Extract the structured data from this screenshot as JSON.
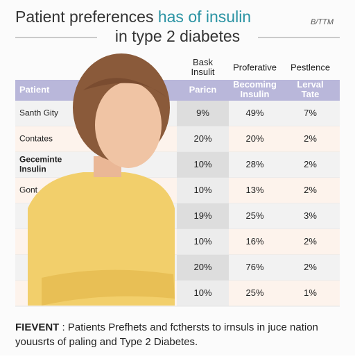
{
  "header": {
    "title_start": "Patient preferences",
    "title_highlight": "has of insulin",
    "title_line2": "in type 2 diabetes",
    "corner": "B/TTM"
  },
  "table": {
    "top_headers": [
      null,
      "Bask Insulit",
      "Proferative",
      "Pestlence"
    ],
    "headers": [
      "Patient",
      "Paricn",
      "Becoming Insulin",
      "Lerval Tate"
    ],
    "rows": [
      [
        "Santh Gity",
        "9%",
        "49%",
        "7%"
      ],
      [
        "Contates",
        "20%",
        "20%",
        "2%"
      ],
      [
        "Geceminte Insulin",
        "10%",
        "28%",
        "2%"
      ],
      [
        "Gont",
        "10%",
        "13%",
        "2%"
      ],
      [
        null,
        "19%",
        "25%",
        "3%"
      ],
      [
        null,
        "10%",
        "16%",
        "2%"
      ],
      [
        null,
        "20%",
        "76%",
        "2%"
      ],
      [
        null,
        "10%",
        "25%",
        "1%"
      ]
    ]
  },
  "footer": {
    "label": "FIEVENT",
    "line1": "Patients Prefhets and fcthersts to irnsuls in juce nation",
    "line2": "youusrts of paling and Type 2 Diabetes."
  }
}
